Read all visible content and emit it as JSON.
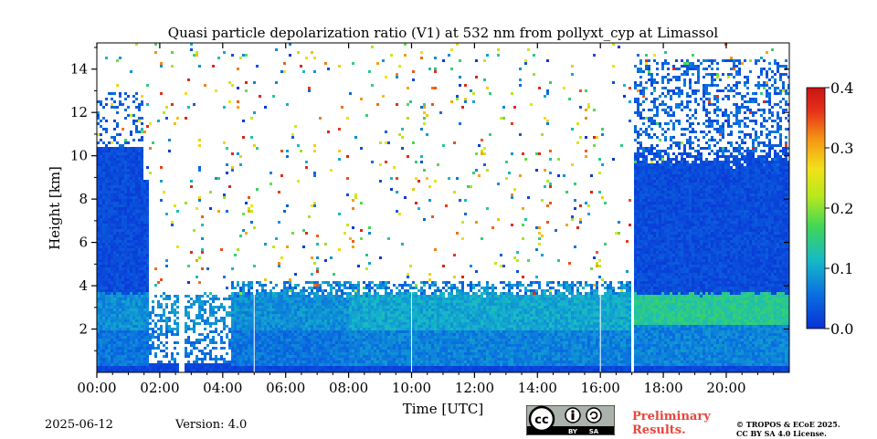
{
  "chart_data": {
    "type": "heatmap",
    "title": "Quasi particle depolarization ratio (V1) at 532 nm from pollyxt_cyp at Limassol",
    "xlabel": "Time [UTC]",
    "ylabel": "Height [km]",
    "xlim": [
      "00:00",
      "22:00"
    ],
    "ylim": [
      0,
      15
    ],
    "x_ticks": [
      "00:00",
      "02:00",
      "04:00",
      "06:00",
      "08:00",
      "10:00",
      "12:00",
      "14:00",
      "16:00",
      "18:00",
      "20:00"
    ],
    "y_ticks": [
      2,
      4,
      6,
      8,
      10,
      12,
      14
    ],
    "colorbar": {
      "min": 0.0,
      "max": 0.4,
      "ticks": [
        "0.0",
        "0.1",
        "0.2",
        "0.3",
        "0.4"
      ],
      "colormap": [
        "#0a2fd6",
        "#0a6fe0",
        "#16b8c8",
        "#3ed65a",
        "#b8e81c",
        "#f2e21a",
        "#f59a14",
        "#e8321a",
        "#c81414"
      ]
    },
    "features": {
      "aerosol_layer_top_km": 3.7,
      "aerosol_layer_depol_range": [
        0.05,
        0.16
      ],
      "cloud_depol_range": [
        0.0,
        0.06
      ],
      "data_gaps": [
        "02:35-02:45",
        "16:56-17:04"
      ]
    }
  },
  "footer": {
    "date": "2025-06-12",
    "version": "Version: 4.0",
    "license_badge": "CC BY SA",
    "license_by": "BY",
    "license_sa": "SA",
    "preliminary_line1": "Preliminary",
    "preliminary_line2": "Results.",
    "copyright_line1": "© TROPOS & ECoE 2025.",
    "copyright_line2": "CC BY SA 4.0 License."
  }
}
